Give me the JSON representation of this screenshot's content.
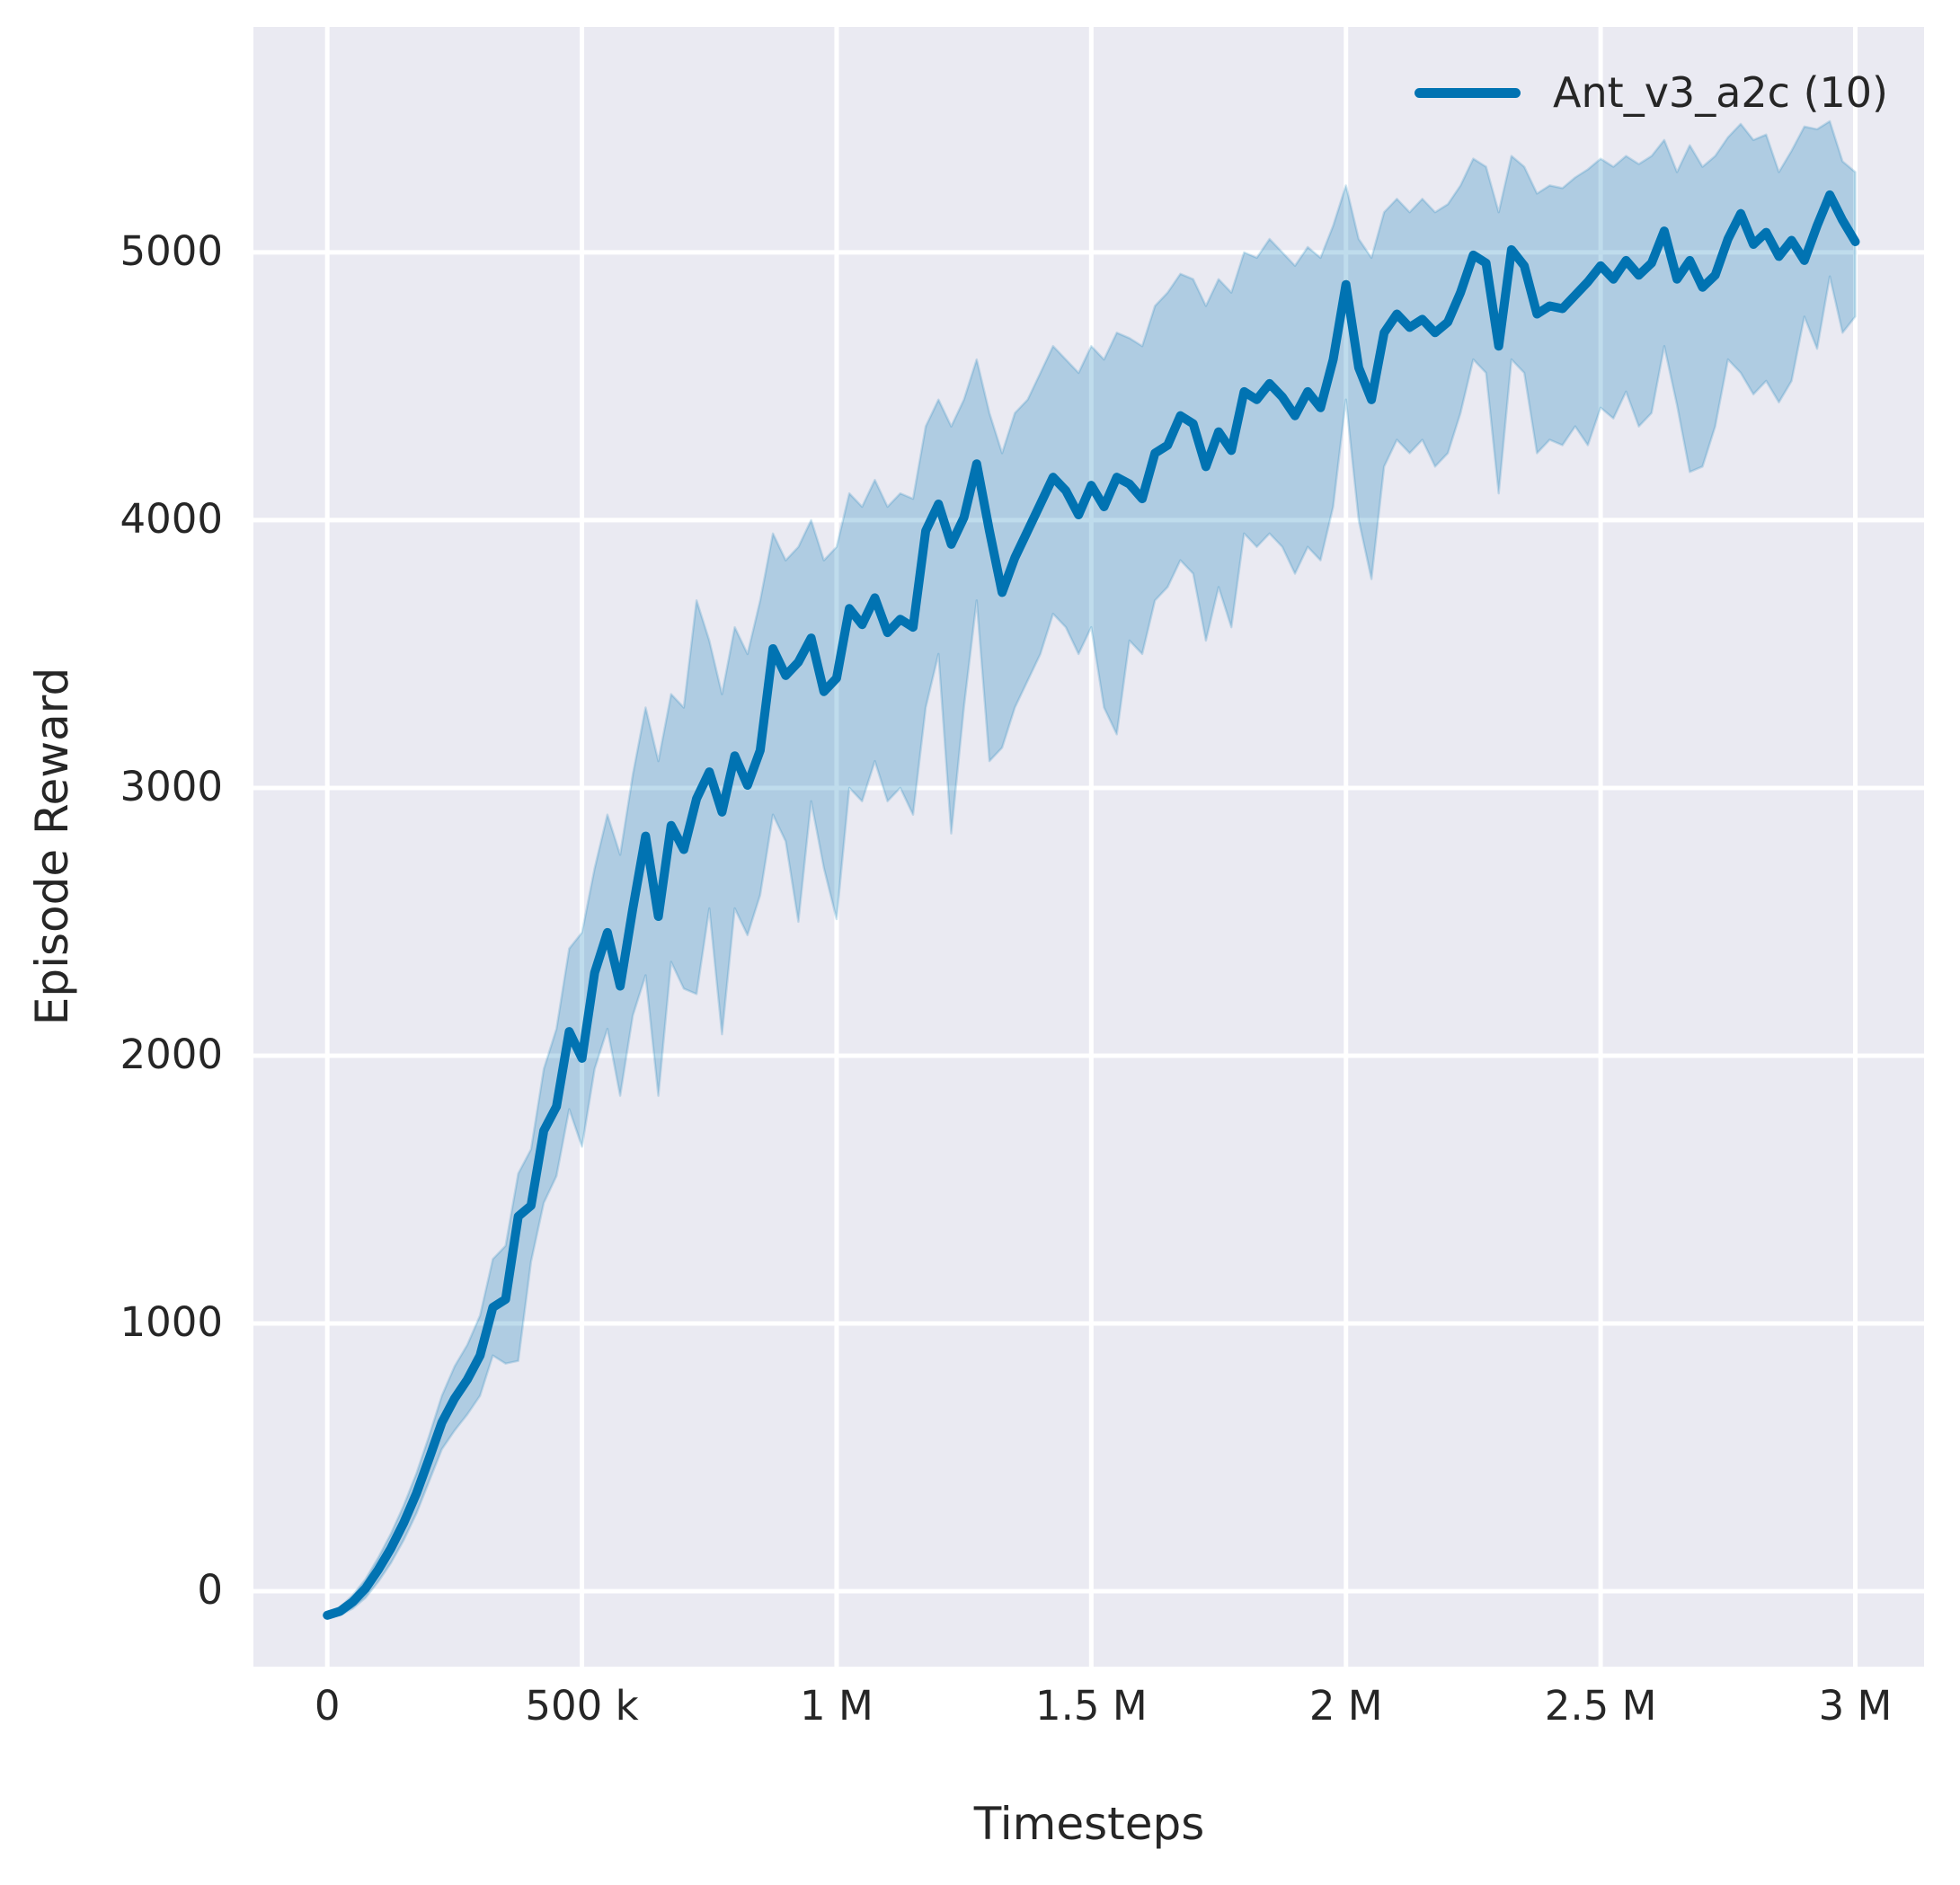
{
  "legend": {
    "label": "Ant_v3_a2c (10)",
    "position": "upper right"
  },
  "colors": {
    "line": "#0173b2",
    "band_fill": "rgba(1,115,178,0.25)",
    "band_edge": "rgba(1,115,178,0.18)",
    "plot_background": "#eaeaf2",
    "grid": "#ffffff",
    "text": "#262626",
    "figure_background": "#ffffff"
  },
  "chart_data": {
    "type": "line",
    "title": "",
    "xlabel": "Timesteps",
    "ylabel": "Episode Reward",
    "grid": true,
    "legend_position": "upper right",
    "xlim": [
      -145000,
      3135000
    ],
    "ylim": [
      -282,
      5842
    ],
    "x_ticks": [
      {
        "value": 0,
        "label": "0"
      },
      {
        "value": 500000,
        "label": "500 k"
      },
      {
        "value": 1000000,
        "label": "1 M"
      },
      {
        "value": 1500000,
        "label": "1.5 M"
      },
      {
        "value": 2000000,
        "label": "2 M"
      },
      {
        "value": 2500000,
        "label": "2.5 M"
      },
      {
        "value": 3000000,
        "label": "3 M"
      }
    ],
    "y_ticks": [
      {
        "value": 0,
        "label": "0"
      },
      {
        "value": 1000,
        "label": "1000"
      },
      {
        "value": 2000,
        "label": "2000"
      },
      {
        "value": 3000,
        "label": "3000"
      },
      {
        "value": 4000,
        "label": "4000"
      },
      {
        "value": 5000,
        "label": "5000"
      }
    ],
    "series": [
      {
        "name": "Ant_v3_a2c (10)",
        "color": "#0173b2",
        "x_timesteps": [
          0,
          25000,
          50000,
          75000,
          100000,
          125000,
          150000,
          175000,
          200000,
          225000,
          250000,
          275000,
          300000,
          325000,
          350000,
          375000,
          400000,
          425000,
          450000,
          475000,
          500000,
          525000,
          550000,
          575000,
          600000,
          625000,
          650000,
          675000,
          700000,
          725000,
          750000,
          775000,
          800000,
          825000,
          850000,
          875000,
          900000,
          925000,
          950000,
          975000,
          1000000,
          1025000,
          1050000,
          1075000,
          1100000,
          1125000,
          1150000,
          1175000,
          1200000,
          1225000,
          1250000,
          1275000,
          1300000,
          1325000,
          1350000,
          1375000,
          1400000,
          1425000,
          1450000,
          1475000,
          1500000,
          1525000,
          1550000,
          1575000,
          1600000,
          1625000,
          1650000,
          1675000,
          1700000,
          1725000,
          1750000,
          1775000,
          1800000,
          1825000,
          1850000,
          1875000,
          1900000,
          1925000,
          1950000,
          1975000,
          2000000,
          2025000,
          2050000,
          2075000,
          2100000,
          2125000,
          2150000,
          2175000,
          2200000,
          2225000,
          2250000,
          2275000,
          2300000,
          2325000,
          2350000,
          2375000,
          2400000,
          2425000,
          2450000,
          2475000,
          2500000,
          2525000,
          2550000,
          2575000,
          2600000,
          2625000,
          2650000,
          2675000,
          2700000,
          2725000,
          2750000,
          2775000,
          2800000,
          2825000,
          2850000,
          2875000,
          2900000,
          2925000,
          2950000,
          2975000,
          3000000
        ],
        "mean": [
          -90,
          -75,
          -40,
          10,
          80,
          160,
          255,
          365,
          495,
          630,
          720,
          790,
          880,
          1060,
          1090,
          1400,
          1440,
          1720,
          1810,
          2090,
          1990,
          2310,
          2460,
          2260,
          2550,
          2820,
          2520,
          2860,
          2770,
          2960,
          3060,
          2910,
          3120,
          3010,
          3140,
          3520,
          3420,
          3470,
          3560,
          3360,
          3410,
          3670,
          3610,
          3710,
          3580,
          3630,
          3600,
          3960,
          4060,
          3910,
          4010,
          4210,
          3960,
          3730,
          3860,
          3960,
          4060,
          4160,
          4110,
          4020,
          4130,
          4050,
          4160,
          4135,
          4080,
          4250,
          4280,
          4390,
          4360,
          4200,
          4330,
          4260,
          4480,
          4450,
          4510,
          4460,
          4390,
          4480,
          4420,
          4600,
          4880,
          4570,
          4450,
          4700,
          4770,
          4720,
          4750,
          4700,
          4740,
          4850,
          4990,
          4960,
          4650,
          5010,
          4950,
          4770,
          4800,
          4790,
          4840,
          4890,
          4950,
          4900,
          4970,
          4915,
          4960,
          5080,
          4900,
          4970,
          4870,
          4915,
          5050,
          5145,
          5030,
          5075,
          4985,
          5045,
          4970,
          5100,
          5215,
          5120,
          5040
        ],
        "band_lower": [
          -100,
          -90,
          -65,
          -25,
          35,
          105,
          190,
          290,
          410,
          530,
          600,
          660,
          730,
          880,
          850,
          860,
          1230,
          1450,
          1550,
          1800,
          1660,
          1950,
          2100,
          1850,
          2150,
          2300,
          1850,
          2350,
          2250,
          2230,
          2550,
          2080,
          2550,
          2450,
          2600,
          2900,
          2800,
          2500,
          2950,
          2700,
          2510,
          3000,
          2950,
          3100,
          2950,
          3000,
          2900,
          3300,
          3500,
          2830,
          3300,
          3700,
          3100,
          3150,
          3300,
          3400,
          3500,
          3650,
          3600,
          3500,
          3600,
          3300,
          3200,
          3550,
          3500,
          3700,
          3750,
          3850,
          3800,
          3550,
          3750,
          3600,
          3950,
          3900,
          3950,
          3900,
          3800,
          3900,
          3850,
          4050,
          4450,
          4000,
          3780,
          4200,
          4300,
          4250,
          4300,
          4200,
          4250,
          4400,
          4600,
          4550,
          4100,
          4600,
          4550,
          4250,
          4300,
          4280,
          4350,
          4280,
          4420,
          4380,
          4480,
          4350,
          4400,
          4650,
          4430,
          4180,
          4200,
          4350,
          4600,
          4550,
          4470,
          4520,
          4440,
          4520,
          4760,
          4640,
          4910,
          4700,
          4760
        ],
        "band_upper": [
          -80,
          -60,
          -15,
          45,
          125,
          215,
          320,
          440,
          580,
          730,
          840,
          920,
          1030,
          1240,
          1290,
          1560,
          1650,
          1950,
          2100,
          2400,
          2460,
          2700,
          2900,
          2750,
          3050,
          3300,
          3100,
          3350,
          3300,
          3700,
          3550,
          3350,
          3600,
          3500,
          3700,
          3950,
          3850,
          3900,
          4000,
          3850,
          3900,
          4100,
          4050,
          4150,
          4050,
          4100,
          4080,
          4350,
          4450,
          4350,
          4450,
          4600,
          4400,
          4250,
          4400,
          4450,
          4550,
          4650,
          4600,
          4550,
          4650,
          4600,
          4700,
          4680,
          4650,
          4800,
          4850,
          4920,
          4900,
          4800,
          4900,
          4850,
          5000,
          4980,
          5050,
          5000,
          4950,
          5020,
          4980,
          5100,
          5250,
          5050,
          4980,
          5150,
          5200,
          5150,
          5200,
          5150,
          5180,
          5250,
          5350,
          5320,
          5150,
          5360,
          5320,
          5220,
          5250,
          5240,
          5280,
          5310,
          5350,
          5320,
          5360,
          5330,
          5360,
          5420,
          5300,
          5400,
          5320,
          5360,
          5430,
          5480,
          5420,
          5440,
          5300,
          5380,
          5470,
          5460,
          5490,
          5340,
          5300
        ]
      }
    ]
  }
}
